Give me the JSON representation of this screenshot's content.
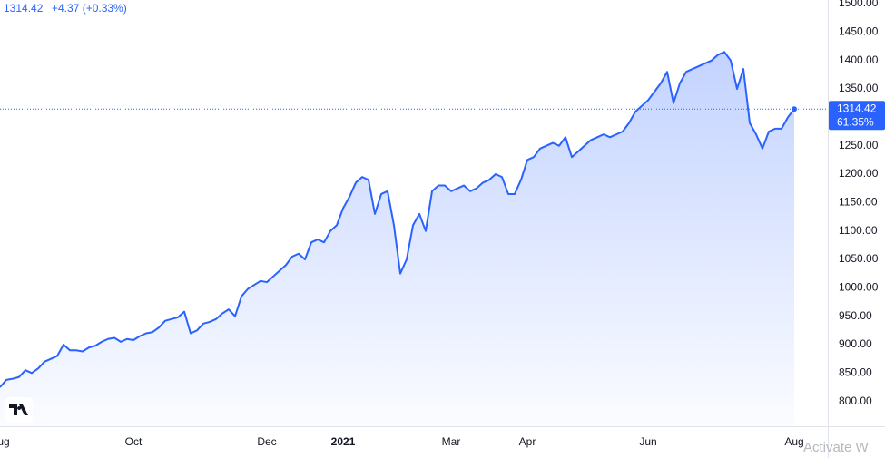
{
  "chart_data": {
    "type": "line",
    "header_price": "1314.42",
    "header_change": "+4.37 (+0.33%)",
    "last_price_label": "1314.42",
    "last_change_label": "61.35%",
    "watermark": "Activate W",
    "color": "#2962ff",
    "categories": [
      "Aug",
      null,
      null,
      null,
      null,
      null,
      null,
      null,
      null,
      null,
      null,
      null,
      null,
      null,
      null,
      null,
      null,
      null,
      null,
      null,
      null,
      "Oct",
      null,
      null,
      null,
      null,
      null,
      null,
      null,
      null,
      null,
      null,
      null,
      null,
      null,
      null,
      null,
      null,
      null,
      null,
      null,
      null,
      "Dec",
      null,
      null,
      null,
      null,
      null,
      null,
      null,
      null,
      null,
      null,
      null,
      "2021",
      null,
      null,
      null,
      null,
      null,
      null,
      null,
      null,
      null,
      null,
      null,
      null,
      null,
      null,
      null,
      null,
      "Mar",
      null,
      null,
      null,
      null,
      null,
      null,
      null,
      null,
      null,
      null,
      null,
      "Apr",
      null,
      null,
      null,
      null,
      null,
      null,
      null,
      null,
      null,
      null,
      null,
      null,
      null,
      null,
      null,
      null,
      null,
      null,
      "Jun",
      null,
      null,
      null,
      null,
      null,
      null,
      null,
      null,
      null,
      null,
      null,
      null,
      null,
      null,
      null,
      null,
      null,
      null,
      null,
      null,
      null,
      null,
      "Aug"
    ],
    "values": [
      825,
      838,
      840,
      843,
      855,
      850,
      858,
      870,
      875,
      880,
      900,
      890,
      890,
      888,
      895,
      898,
      905,
      910,
      912,
      905,
      910,
      908,
      915,
      920,
      922,
      930,
      942,
      945,
      948,
      958,
      920,
      925,
      937,
      940,
      945,
      955,
      962,
      950,
      985,
      998,
      1005,
      1012,
      1010,
      1020,
      1030,
      1040,
      1055,
      1060,
      1050,
      1080,
      1085,
      1080,
      1100,
      1110,
      1140,
      1160,
      1185,
      1195,
      1190,
      1130,
      1165,
      1170,
      1110,
      1025,
      1050,
      1110,
      1130,
      1100,
      1170,
      1180,
      1180,
      1170,
      1175,
      1180,
      1170,
      1175,
      1185,
      1190,
      1200,
      1195,
      1165,
      1165,
      1190,
      1225,
      1230,
      1245,
      1250,
      1255,
      1250,
      1265,
      1230,
      1240,
      1250,
      1260,
      1265,
      1270,
      1265,
      1270,
      1275,
      1290,
      1310,
      1320,
      1330,
      1345,
      1360,
      1380,
      1325,
      1360,
      1380,
      1385,
      1390,
      1395,
      1400,
      1410,
      1415,
      1400,
      1350,
      1385,
      1290,
      1270,
      1245,
      1275,
      1280,
      1280,
      1300,
      1314.42
    ],
    "ylim": [
      756.4,
      1506.4
    ],
    "yticks": [
      {
        "value": 800,
        "label": "800.00"
      },
      {
        "value": 850,
        "label": "850.00"
      },
      {
        "value": 900,
        "label": "900.00"
      },
      {
        "value": 950,
        "label": "950.00"
      },
      {
        "value": 1000,
        "label": "1000.00"
      },
      {
        "value": 1050,
        "label": "1050.00"
      },
      {
        "value": 1100,
        "label": "1100.00"
      },
      {
        "value": 1150,
        "label": "1150.00"
      },
      {
        "value": 1200,
        "label": "1200.00"
      },
      {
        "value": 1250,
        "label": "1250.00"
      },
      {
        "value": 1350,
        "label": "1350.00"
      },
      {
        "value": 1400,
        "label": "1400.00"
      },
      {
        "value": 1450,
        "label": "1450.00"
      },
      {
        "value": 1500,
        "label": "1500.00"
      }
    ]
  }
}
